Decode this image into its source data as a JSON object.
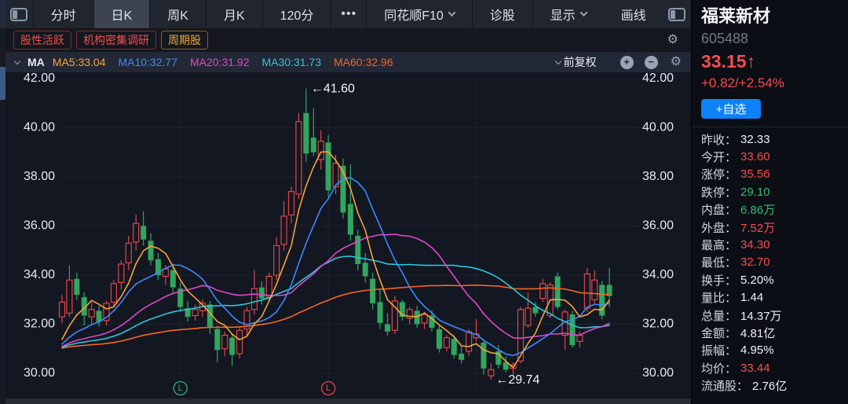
{
  "colors": {
    "up_red": "#fa4b4f",
    "down_green": "#3ab879",
    "accent_blue": "#0d82f8"
  },
  "toolbar": {
    "tabs": [
      {
        "id": "minute",
        "label": "分时"
      },
      {
        "id": "daily-k",
        "label": "日K",
        "active": true
      },
      {
        "id": "weekly-k",
        "label": "周K"
      },
      {
        "id": "monthly-k",
        "label": "月K"
      },
      {
        "id": "120min",
        "label": "120分"
      },
      {
        "id": "more-periods",
        "label": "•••",
        "dots": true
      },
      {
        "id": "ths-f10",
        "label": "同花顺F10",
        "caret": true
      },
      {
        "id": "diagnose-stock",
        "label": "诊股"
      }
    ],
    "right_tabs": [
      {
        "id": "display",
        "label": "显示",
        "caret": true
      },
      {
        "id": "draw-line",
        "label": "画线"
      }
    ]
  },
  "tags": [
    {
      "id": "active-stock",
      "label": "股性活跃",
      "color": "red"
    },
    {
      "id": "institution-research",
      "label": "机构密集调研",
      "color": "red"
    },
    {
      "id": "cyclical-stock",
      "label": "周期股",
      "color": "orange"
    }
  ],
  "ma_bar": {
    "title": "MA",
    "adjust_label": "前复权"
  },
  "quote_panel": {
    "name": "福莱新材",
    "code": "605488",
    "price": "33.15",
    "arrow": "↑",
    "change": "+0.82/+2.54%",
    "add_watchlist_label": "+自选",
    "stats": [
      {
        "label": "昨收：",
        "value": "32.33",
        "tone": "flat"
      },
      {
        "label": "今开：",
        "value": "33.60",
        "tone": "up"
      },
      {
        "label": "涨停：",
        "value": "35.56",
        "tone": "up"
      },
      {
        "label": "跌停：",
        "value": "29.10",
        "tone": "down"
      },
      {
        "label": "内盘：",
        "value": "6.86万",
        "tone": "down"
      },
      {
        "label": "外盘：",
        "value": "7.52万",
        "tone": "up"
      },
      {
        "label": "最高：",
        "value": "34.30",
        "tone": "up"
      },
      {
        "label": "最低：",
        "value": "32.70",
        "tone": "up"
      },
      {
        "label": "换手：",
        "value": "5.20%",
        "tone": "flat"
      },
      {
        "label": "量比：",
        "value": "1.44",
        "tone": "flat"
      },
      {
        "label": "总量：",
        "value": "14.37万",
        "tone": "flat"
      },
      {
        "label": "金额：",
        "value": "4.81亿",
        "tone": "flat"
      },
      {
        "label": "振幅：",
        "value": "4.95%",
        "tone": "flat"
      },
      {
        "label": "均价：",
        "value": "33.44",
        "tone": "up"
      },
      {
        "label": "流通股：",
        "value": "2.76亿",
        "tone": "flat"
      }
    ]
  },
  "chart_data": {
    "type": "candlestick",
    "title": "福莱新材 605488 日K 前复权",
    "ylim": [
      29.5,
      42.3
    ],
    "yticks": [
      "42.00",
      "40.00",
      "38.00",
      "36.00",
      "34.00",
      "32.00",
      "30.00"
    ],
    "grid": true,
    "up_color": "#e04545",
    "down_color": "#31a65f",
    "candles": [
      [
        32.3,
        33.2,
        32.05,
        32.9
      ],
      [
        32.45,
        34.4,
        32.3,
        33.8
      ],
      [
        33.85,
        34.1,
        33.0,
        33.2
      ],
      [
        33.1,
        33.3,
        31.95,
        32.35
      ],
      [
        32.3,
        32.9,
        32.0,
        32.6
      ],
      [
        32.55,
        32.75,
        31.9,
        32.1
      ],
      [
        32.15,
        32.95,
        31.95,
        32.85
      ],
      [
        32.9,
        33.8,
        32.7,
        33.65
      ],
      [
        33.7,
        34.6,
        33.4,
        34.45
      ],
      [
        34.5,
        35.6,
        34.2,
        35.3
      ],
      [
        35.35,
        36.45,
        35.0,
        36.1
      ],
      [
        36.0,
        36.6,
        35.2,
        35.45
      ],
      [
        35.4,
        35.7,
        34.4,
        34.6
      ],
      [
        34.65,
        34.9,
        33.8,
        34.0
      ],
      [
        33.95,
        34.4,
        33.6,
        34.25
      ],
      [
        34.2,
        34.35,
        33.3,
        33.5
      ],
      [
        33.45,
        33.7,
        32.5,
        32.7
      ],
      [
        32.65,
        32.95,
        32.1,
        32.3
      ],
      [
        32.35,
        32.8,
        32.15,
        32.6
      ],
      [
        32.55,
        33.0,
        32.3,
        32.85
      ],
      [
        32.8,
        32.95,
        31.6,
        31.85
      ],
      [
        31.8,
        31.95,
        30.45,
        30.95
      ],
      [
        31.0,
        31.7,
        30.7,
        31.55
      ],
      [
        31.45,
        31.6,
        30.3,
        30.75
      ],
      [
        30.8,
        31.9,
        30.6,
        31.75
      ],
      [
        31.8,
        32.7,
        31.55,
        32.55
      ],
      [
        32.6,
        34.2,
        32.4,
        33.45
      ],
      [
        33.5,
        33.75,
        32.8,
        33.05
      ],
      [
        33.1,
        34.1,
        32.95,
        33.95
      ],
      [
        34.0,
        35.55,
        33.8,
        35.2
      ],
      [
        35.25,
        37.0,
        35.0,
        36.4
      ],
      [
        36.45,
        37.6,
        36.1,
        37.4
      ],
      [
        37.3,
        40.6,
        37.1,
        40.25
      ],
      [
        40.6,
        41.6,
        38.6,
        38.95
      ],
      [
        39.6,
        40.8,
        38.85,
        39.0
      ],
      [
        38.7,
        39.9,
        38.3,
        39.45
      ],
      [
        39.4,
        39.7,
        37.2,
        37.45
      ],
      [
        37.6,
        38.9,
        37.3,
        38.55
      ],
      [
        38.45,
        38.75,
        36.3,
        36.55
      ],
      [
        36.9,
        38.5,
        35.4,
        35.65
      ],
      [
        35.6,
        35.85,
        34.2,
        34.45
      ],
      [
        34.5,
        34.9,
        33.7,
        33.95
      ],
      [
        33.85,
        34.1,
        32.6,
        32.85
      ],
      [
        32.9,
        33.4,
        31.8,
        32.05
      ],
      [
        32.0,
        32.45,
        31.55,
        31.7
      ],
      [
        31.75,
        33.15,
        31.6,
        32.95
      ],
      [
        32.9,
        33.0,
        32.15,
        32.3
      ],
      [
        32.25,
        32.7,
        32.0,
        32.6
      ],
      [
        32.55,
        32.75,
        31.85,
        32.0
      ],
      [
        32.05,
        32.5,
        31.8,
        32.4
      ],
      [
        32.35,
        32.55,
        31.7,
        31.85
      ],
      [
        31.8,
        31.95,
        30.85,
        31.0
      ],
      [
        31.05,
        31.55,
        30.9,
        31.45
      ],
      [
        31.4,
        31.55,
        30.6,
        30.75
      ],
      [
        30.8,
        31.1,
        30.4,
        30.55
      ],
      [
        30.9,
        31.8,
        30.7,
        31.7
      ],
      [
        31.45,
        32.2,
        31.3,
        31.6
      ],
      [
        31.25,
        31.4,
        29.95,
        30.2
      ],
      [
        29.9,
        30.4,
        29.74,
        30.15
      ],
      [
        30.9,
        31.15,
        30.2,
        30.35
      ],
      [
        30.45,
        30.7,
        30.05,
        30.15
      ],
      [
        30.2,
        30.45,
        29.95,
        30.35
      ],
      [
        30.5,
        32.7,
        30.4,
        32.6
      ],
      [
        31.95,
        33.3,
        31.85,
        32.65
      ],
      [
        32.7,
        32.9,
        32.3,
        32.45
      ],
      [
        33.05,
        33.85,
        32.9,
        33.65
      ],
      [
        32.35,
        33.7,
        32.25,
        33.6
      ],
      [
        33.95,
        34.1,
        32.6,
        32.7
      ],
      [
        31.55,
        32.6,
        30.95,
        32.5
      ],
      [
        32.4,
        32.55,
        31.05,
        31.15
      ],
      [
        31.3,
        31.7,
        31.05,
        31.55
      ],
      [
        32.65,
        34.3,
        32.5,
        34.05
      ],
      [
        33.0,
        34.2,
        32.85,
        33.8
      ],
      [
        33.6,
        33.75,
        32.2,
        32.35
      ],
      [
        33.6,
        34.3,
        32.7,
        33.15
      ]
    ],
    "ma_padding_value": 31.0,
    "ma_series": [
      {
        "name": "MA5",
        "period": 5,
        "color": "#f7a43a",
        "label": "MA5:33.04"
      },
      {
        "name": "MA10",
        "period": 10,
        "color": "#3d8bfd",
        "label": "MA10:32.77"
      },
      {
        "name": "MA20",
        "period": 20,
        "color": "#e048c8",
        "label": "MA20:31.92"
      },
      {
        "name": "MA30",
        "period": 30,
        "color": "#2bc7dc",
        "label": "MA30:31.73"
      },
      {
        "name": "MA60",
        "period": 60,
        "color": "#f7661f",
        "label": "MA60:32.96"
      }
    ],
    "annotations": [
      {
        "text": "←41.60",
        "candle_index": 33,
        "anchor": "high"
      },
      {
        "text": "←29.74",
        "candle_index": 58,
        "anchor": "low"
      }
    ],
    "event_markers": [
      {
        "label": "L",
        "candle_index": 16,
        "color": "#2fae6e"
      },
      {
        "label": "L",
        "candle_index": 36,
        "color": "#e04545"
      }
    ],
    "x_gridline_indices": [
      16,
      36,
      56
    ]
  }
}
